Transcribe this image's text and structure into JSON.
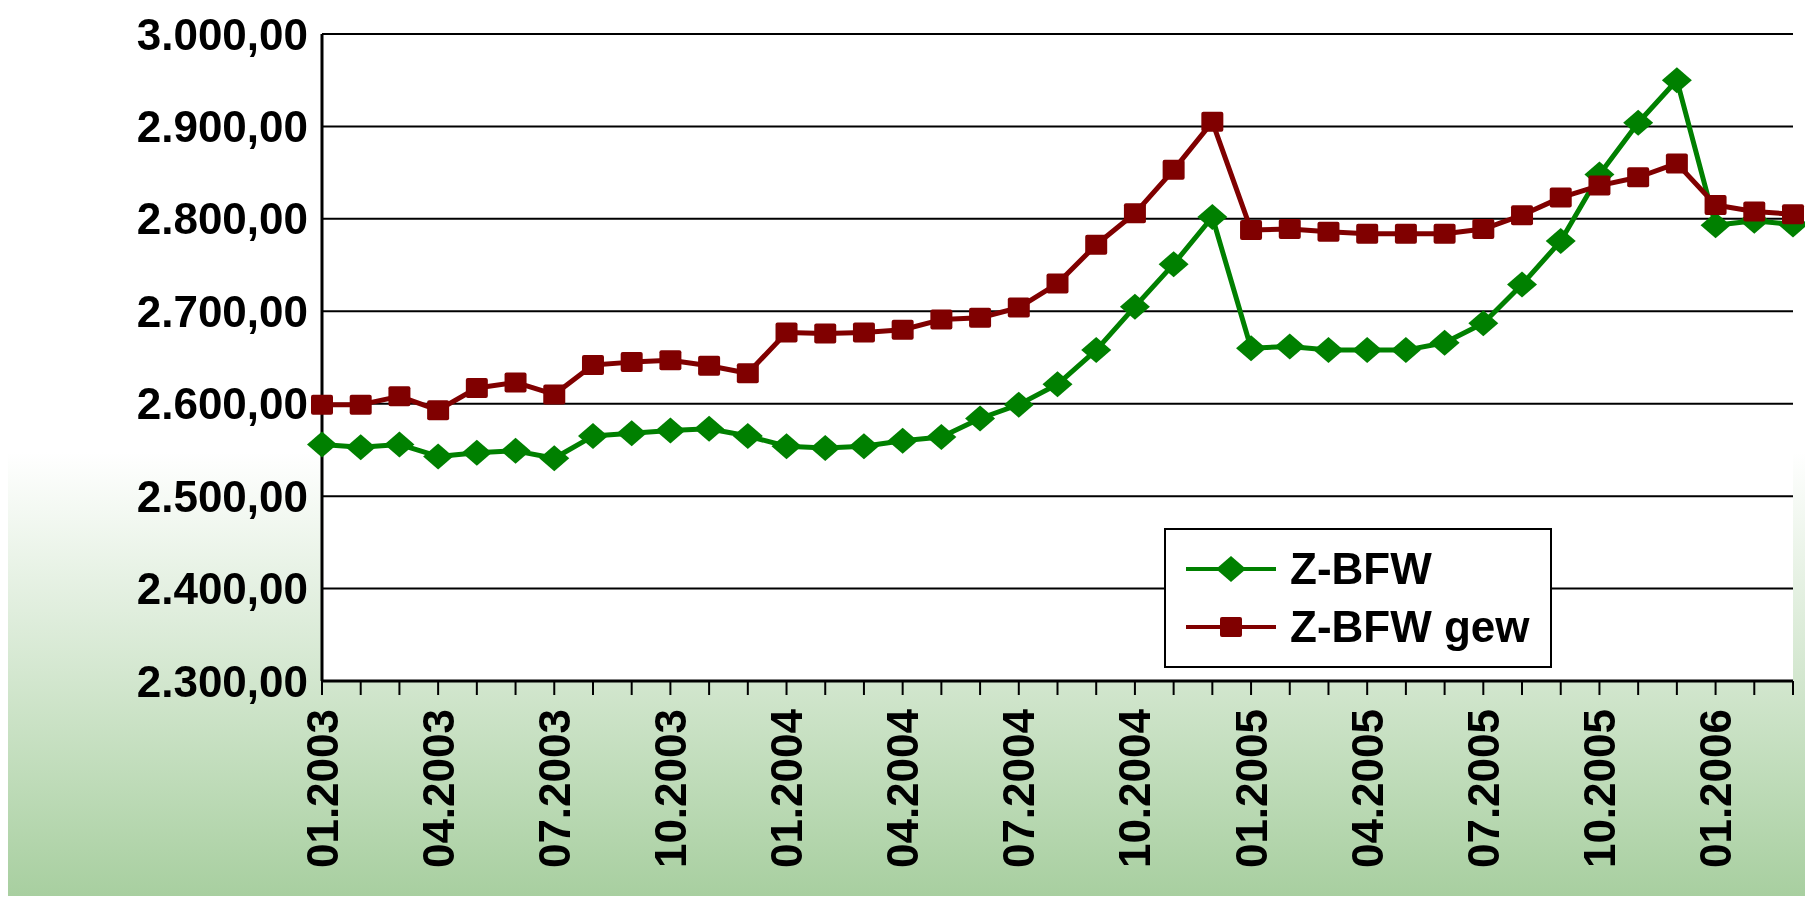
{
  "chart_data": {
    "type": "line",
    "categories": [
      "01.2003",
      null,
      null,
      "04.2003",
      null,
      null,
      "07.2003",
      null,
      null,
      "10.2003",
      null,
      null,
      "01.2004",
      null,
      null,
      "04.2004",
      null,
      null,
      "07.2004",
      null,
      null,
      "10.2004",
      null,
      null,
      "01.2005",
      null,
      null,
      "04.2005",
      null,
      null,
      "07.2005",
      null,
      null,
      "10.2005",
      null,
      null,
      "01.2006",
      null,
      null
    ],
    "series": [
      {
        "name": "Z-BFW",
        "color": "#008000",
        "marker": "diamond",
        "values": [
          2556,
          2553,
          2556,
          2543,
          2547,
          2549,
          2541,
          2565,
          2568,
          2571,
          2573,
          2565,
          2554,
          2552,
          2554,
          2560,
          2564,
          2584,
          2599,
          2621,
          2658,
          2705,
          2751,
          2802,
          2660,
          2662,
          2658,
          2658,
          2658,
          2666,
          2687,
          2729,
          2776,
          2848,
          2904,
          2950,
          2793,
          2798,
          2794
        ]
      },
      {
        "name": "Z-BFW gew",
        "color": "#800000",
        "marker": "square",
        "values": [
          2599,
          2599,
          2608,
          2593,
          2617,
          2623,
          2610,
          2642,
          2645,
          2647,
          2641,
          2633,
          2677,
          2676,
          2677,
          2680,
          2691,
          2693,
          2704,
          2730,
          2772,
          2806,
          2853,
          2905,
          2788,
          2789,
          2786,
          2784,
          2784,
          2784,
          2789,
          2804,
          2823,
          2836,
          2845,
          2860,
          2815,
          2808,
          2805
        ]
      }
    ],
    "ylim": [
      2300,
      3000
    ],
    "yticks": [
      {
        "value": 2300,
        "label": "2.300,00"
      },
      {
        "value": 2400,
        "label": "2.400,00"
      },
      {
        "value": 2500,
        "label": "2.500,00"
      },
      {
        "value": 2600,
        "label": "2.600,00"
      },
      {
        "value": 2700,
        "label": "2.700,00"
      },
      {
        "value": 2800,
        "label": "2.800,00"
      },
      {
        "value": 2900,
        "label": "2.900,00"
      },
      {
        "value": 3000,
        "label": "3.000,00"
      }
    ],
    "grid": "y",
    "legend": "bottom right",
    "line_style": "solid"
  }
}
